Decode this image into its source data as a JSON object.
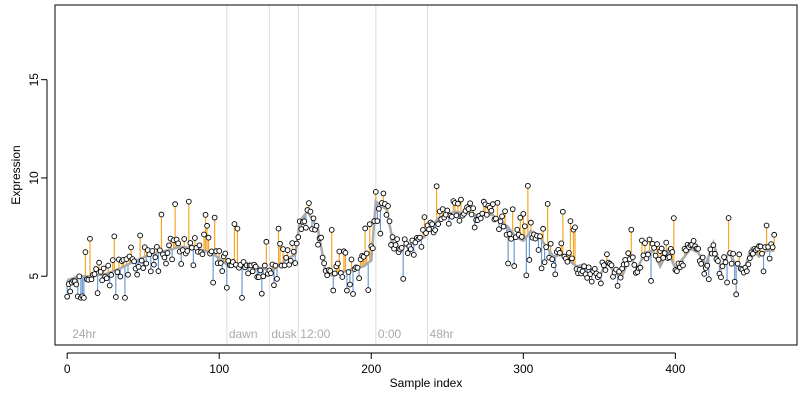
{
  "chart_data": {
    "type": "scatter",
    "title": "",
    "xlabel": "Sample index",
    "ylabel": "Expression",
    "xlim": [
      -8,
      480
    ],
    "ylim": [
      1.5,
      18.8
    ],
    "x_ticks": [
      0,
      100,
      200,
      300,
      400
    ],
    "y_ticks": [
      5,
      10,
      15
    ],
    "grid": false,
    "legend": "none",
    "colors": {
      "above_fit_segment": "#f5a623",
      "below_fit_segment": "#6c9bd2",
      "fitted_curve": "#aaaaaa",
      "phase_line": "#dddddd",
      "point_edge": "#000000",
      "phase_label": "#aaaaaa"
    },
    "phase_markers": [
      {
        "x": 2,
        "label": "24hr"
      },
      {
        "x": 105,
        "label": "dawn"
      },
      {
        "x": 133,
        "label": "dusk"
      },
      {
        "x": 152,
        "label": "12:00"
      },
      {
        "x": 203,
        "label": "0:00"
      },
      {
        "x": 237,
        "label": "48hr"
      }
    ],
    "fit_anchors": {
      "x": [
        0,
        8,
        15,
        25,
        35,
        45,
        55,
        65,
        75,
        85,
        95,
        100,
        105,
        112,
        120,
        128,
        135,
        140,
        145,
        150,
        153,
        158,
        165,
        170,
        175,
        180,
        185,
        190,
        195,
        200,
        203,
        210,
        215,
        220,
        225,
        230,
        235,
        240,
        245,
        250,
        255,
        260,
        265,
        270,
        275,
        280,
        285,
        290,
        295,
        300,
        305,
        310,
        315,
        320,
        325,
        330,
        335,
        340,
        345,
        350,
        355,
        360,
        365,
        370,
        375,
        380,
        385,
        390,
        395,
        400,
        405,
        410,
        415,
        420,
        425,
        430,
        435,
        440,
        445,
        450,
        455,
        460,
        465
      ],
      "y": [
        4.8,
        5.0,
        5.0,
        5.1,
        5.4,
        5.8,
        6.1,
        6.3,
        6.5,
        6.4,
        6.2,
        5.9,
        5.6,
        5.6,
        5.6,
        5.4,
        5.3,
        5.6,
        5.9,
        6.1,
        7.8,
        8.3,
        7.4,
        5.2,
        5.0,
        5.2,
        5.3,
        5.4,
        5.5,
        5.8,
        8.8,
        8.4,
        6.5,
        6.5,
        6.6,
        6.8,
        7.0,
        7.6,
        8.0,
        8.1,
        8.3,
        8.2,
        8.2,
        8.1,
        8.2,
        8.1,
        7.8,
        7.5,
        7.0,
        6.8,
        7.3,
        7.1,
        6.5,
        6.0,
        6.1,
        5.8,
        5.5,
        5.6,
        5.3,
        5.0,
        5.7,
        5.2,
        5.0,
        6.0,
        5.4,
        6.2,
        6.3,
        5.5,
        6.3,
        5.4,
        5.9,
        6.4,
        6.2,
        5.6,
        6.7,
        5.4,
        6.2,
        5.6,
        5.3,
        6.4,
        6.0,
        6.3,
        6.3
      ]
    },
    "seed": 20240517
  }
}
